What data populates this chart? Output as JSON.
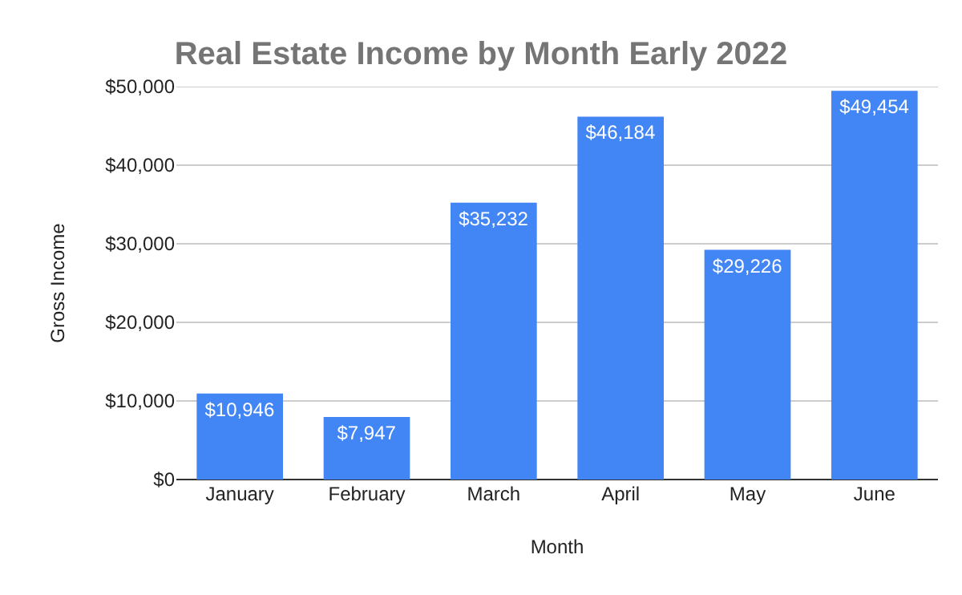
{
  "chart_data": {
    "type": "bar",
    "title": "Real Estate Income by Month Early 2022",
    "xlabel": "Month",
    "ylabel": "Gross Income",
    "categories": [
      "January",
      "February",
      "March",
      "April",
      "May",
      "June"
    ],
    "values": [
      10946,
      7947,
      35232,
      46184,
      29226,
      49454
    ],
    "value_labels": [
      "$10,946",
      "$7,947",
      "$35,232",
      "$46,184",
      "$29,226",
      "$49,454"
    ],
    "color": "#4285f4",
    "ylim": [
      0,
      50000
    ],
    "yticks": [
      {
        "value": 0,
        "label": "$0"
      },
      {
        "value": 10000,
        "label": "$10,000"
      },
      {
        "value": 20000,
        "label": "$20,000"
      },
      {
        "value": 30000,
        "label": "$30,000"
      },
      {
        "value": 40000,
        "label": "$40,000"
      },
      {
        "value": 50000,
        "label": "$50,000"
      }
    ],
    "grid": "y"
  }
}
